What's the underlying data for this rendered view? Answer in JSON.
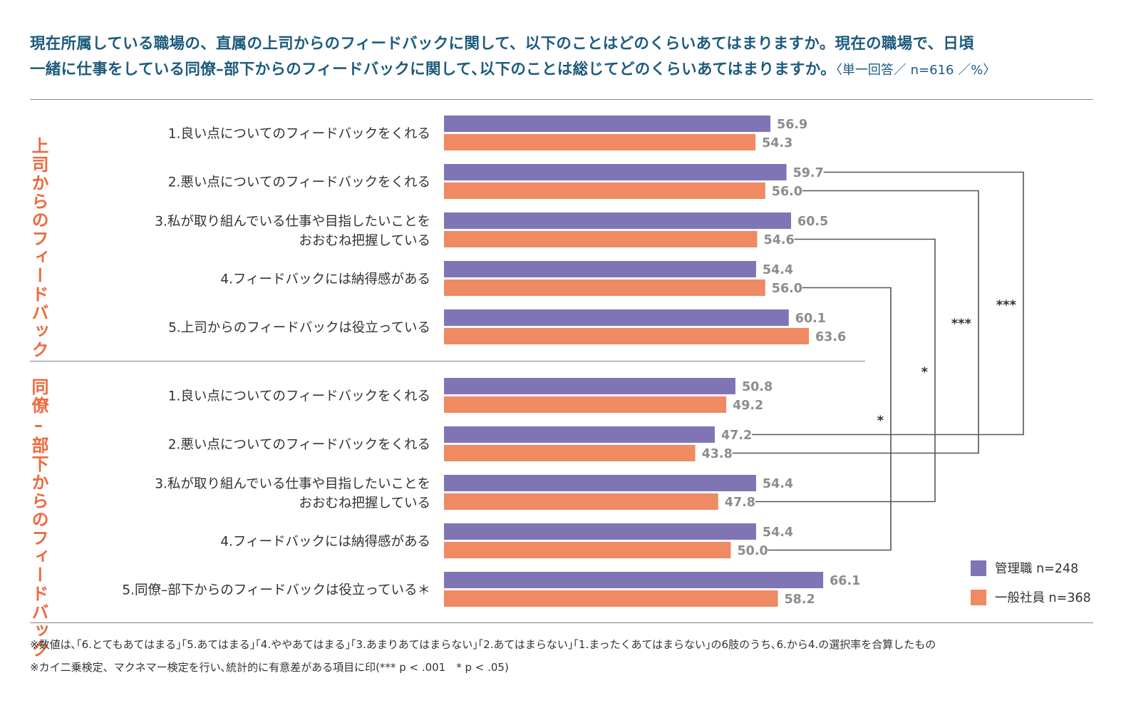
{
  "title": {
    "line1": "現在所属している職場の、直属の上司からのフィードバックに関して、以下のことはどのくらいあてはまりますか。現在の職場で、日頃",
    "line2": "一緒に仕事をしている同僚–部下からのフィードバックに関して､以下のことは総じてどのくらいあてはまりますか。",
    "meta": "〈単一回答／ n=616 ／%〉"
  },
  "colors": {
    "manager": "#8075b4",
    "employee": "#ef8a62",
    "title": "#1d5b7d",
    "group_label": "#ec6a3e"
  },
  "chart_data": {
    "type": "bar",
    "orientation": "horizontal",
    "unit": "%",
    "series": [
      {
        "name": "管理職 n=248",
        "key": "manager"
      },
      {
        "name": "一般社員 n=368",
        "key": "employee"
      }
    ],
    "groups": [
      {
        "label": "上司からのフィードバック",
        "items": [
          {
            "label": [
              "1.良い点についてのフィードバックをくれる"
            ],
            "manager": 56.9,
            "employee": 54.3
          },
          {
            "label": [
              "2.悪い点についてのフィードバックをくれる"
            ],
            "manager": 59.7,
            "employee": 56.0
          },
          {
            "label": [
              "3.私が取り組んでいる仕事や目指したいことを",
              "おおむね把握している"
            ],
            "manager": 60.5,
            "employee": 54.6
          },
          {
            "label": [
              "4.フィードバックには納得感がある"
            ],
            "manager": 54.4,
            "employee": 56.0
          },
          {
            "label": [
              "5.上司からのフィードバックは役立っている"
            ],
            "manager": 60.1,
            "employee": 63.6
          }
        ]
      },
      {
        "label": "同僚–部下からのフィードバック",
        "items": [
          {
            "label": [
              "1.良い点についてのフィードバックをくれる"
            ],
            "manager": 50.8,
            "employee": 49.2
          },
          {
            "label": [
              "2.悪い点についてのフィードバックをくれる"
            ],
            "manager": 47.2,
            "employee": 43.8
          },
          {
            "label": [
              "3.私が取り組んでいる仕事や目指したいことを",
              "おおむね把握している"
            ],
            "manager": 54.4,
            "employee": 47.8
          },
          {
            "label": [
              "4.フィードバックには納得感がある"
            ],
            "manager": 54.4,
            "employee": 50.0
          },
          {
            "label": [
              "5.同僚–部下からのフィードバックは役立っている＊"
            ],
            "manager": 66.1,
            "employee": 58.2
          }
        ]
      }
    ],
    "significance": [
      {
        "from": {
          "group": 0,
          "item": 1,
          "series": "manager"
        },
        "to": {
          "group": 1,
          "item": 1,
          "series": "manager"
        },
        "mark": "***"
      },
      {
        "from": {
          "group": 0,
          "item": 1,
          "series": "employee"
        },
        "to": {
          "group": 1,
          "item": 1,
          "series": "employee"
        },
        "mark": "***"
      },
      {
        "from": {
          "group": 0,
          "item": 2,
          "series": "employee"
        },
        "to": {
          "group": 1,
          "item": 2,
          "series": "employee"
        },
        "mark": "*"
      },
      {
        "from": {
          "group": 0,
          "item": 3,
          "series": "employee"
        },
        "to": {
          "group": 1,
          "item": 3,
          "series": "employee"
        },
        "mark": "*"
      }
    ]
  },
  "notes": [
    "※数値は､｢6.とてもあてはまる｣｢5.あてはまる｣｢4.ややあてはまる｣｢3.あまりあてはまらない｣｢2.あてはまらない｣｢1.まったくあてはまらない｣の6肢のうち､6.から4.の選択率を合算したもの",
    "※カイ二乗検定、マクネマー検定を行い､統計的に有意差がある項目に印(*** p < .001　* p < .05)"
  ]
}
